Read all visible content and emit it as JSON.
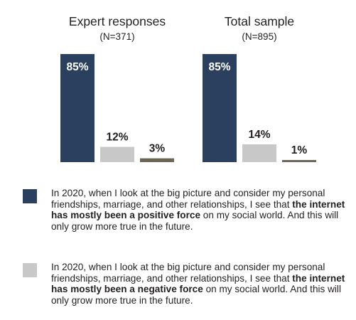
{
  "chart_data": {
    "type": "bar",
    "panels": [
      {
        "title": "Expert responses",
        "subtitle": "(N=371)",
        "values": [
          85,
          12,
          3
        ],
        "labels": [
          "85%",
          "12%",
          "3%"
        ]
      },
      {
        "title": "Total sample",
        "subtitle": "(N=895)",
        "values": [
          85,
          14,
          1
        ],
        "labels": [
          "85%",
          "14%",
          "1%"
        ]
      }
    ],
    "series": [
      {
        "color": "#2b3f5e",
        "legend_before": "In 2020, when I look at the big picture and consider my personal friendships, marriage, and other relationships, I see that ",
        "legend_bold": "the internet has mostly been a positive force",
        "legend_after": " on my social world. And this will only grow more true in the future."
      },
      {
        "color": "#c8c8c8",
        "legend_before": "In 2020, when I look at the big picture and consider my personal friendships, marriage, and other relationships, I see that ",
        "legend_bold": "the internet has mostly been a negative force",
        "legend_after": " on my social world. And this will only grow more true in the future."
      },
      {
        "color": "#6f6553"
      }
    ],
    "value_label_colors": [
      "#ffffff",
      "#231f20",
      "#231f20"
    ]
  }
}
